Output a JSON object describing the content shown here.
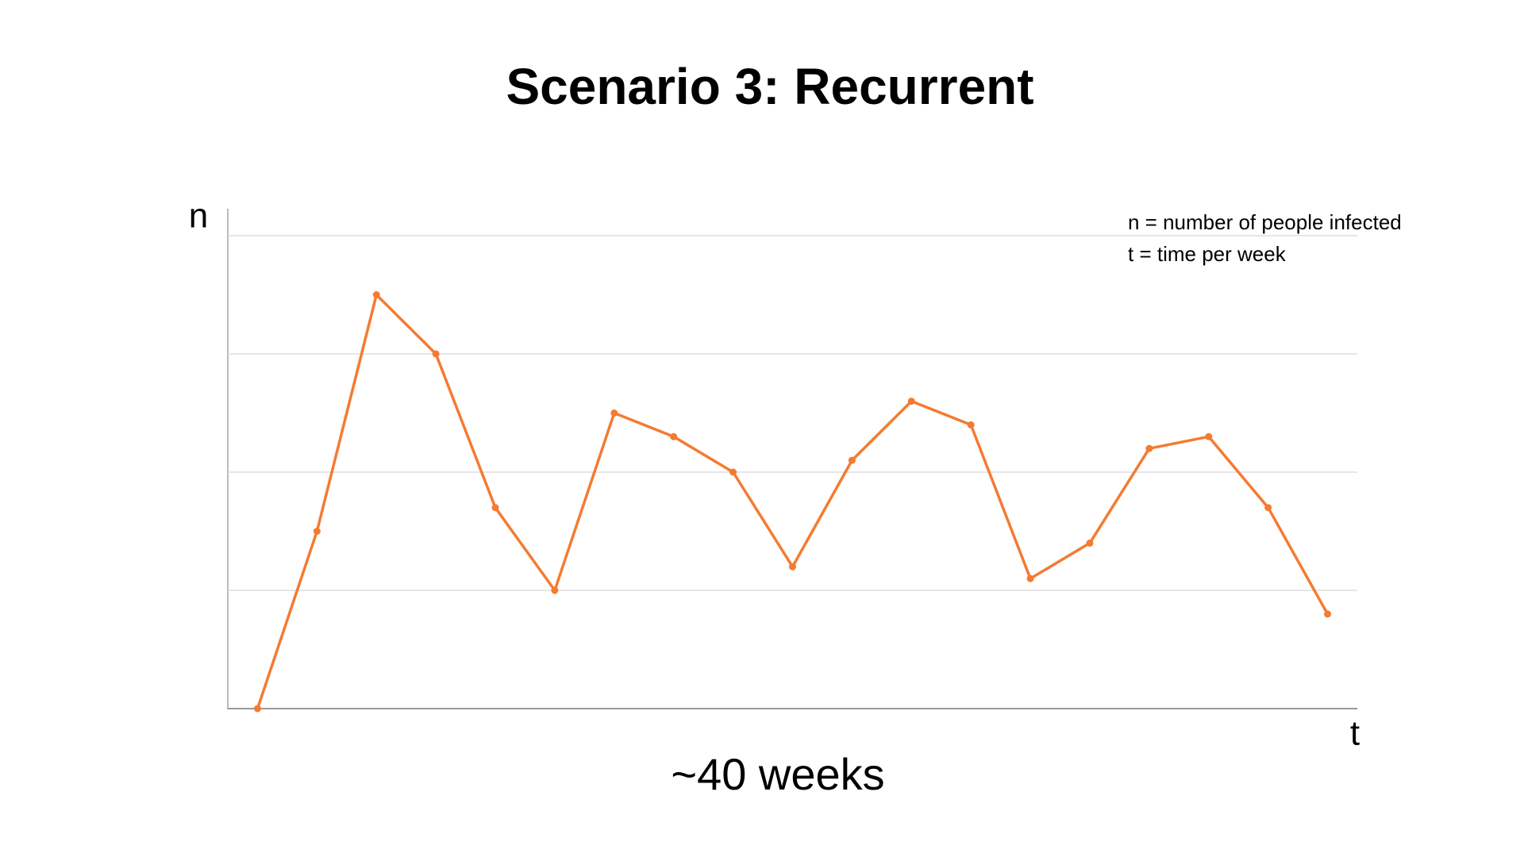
{
  "chart_data": {
    "type": "line",
    "title": "Scenario 3: Recurrent",
    "y_label": "n",
    "x_label": "t",
    "subtitle": "~40 weeks",
    "notes": [
      "n = number of people infected",
      "t = time per week"
    ],
    "categories": [
      null,
      null,
      null,
      null,
      null,
      null,
      null,
      null,
      null,
      null,
      null,
      null,
      null,
      null,
      null,
      null,
      null,
      null,
      null
    ],
    "values": [
      0,
      1.5,
      3.5,
      3,
      1.7,
      1,
      2.5,
      2.3,
      2,
      1.2,
      2.1,
      2.6,
      2.4,
      1.1,
      1.4,
      2.2,
      2.3,
      1.7,
      0.8
    ],
    "color": "#f47b32",
    "ylim": [
      0,
      4
    ],
    "yticks": [
      0,
      1,
      2,
      3,
      4
    ],
    "grid": true
  }
}
